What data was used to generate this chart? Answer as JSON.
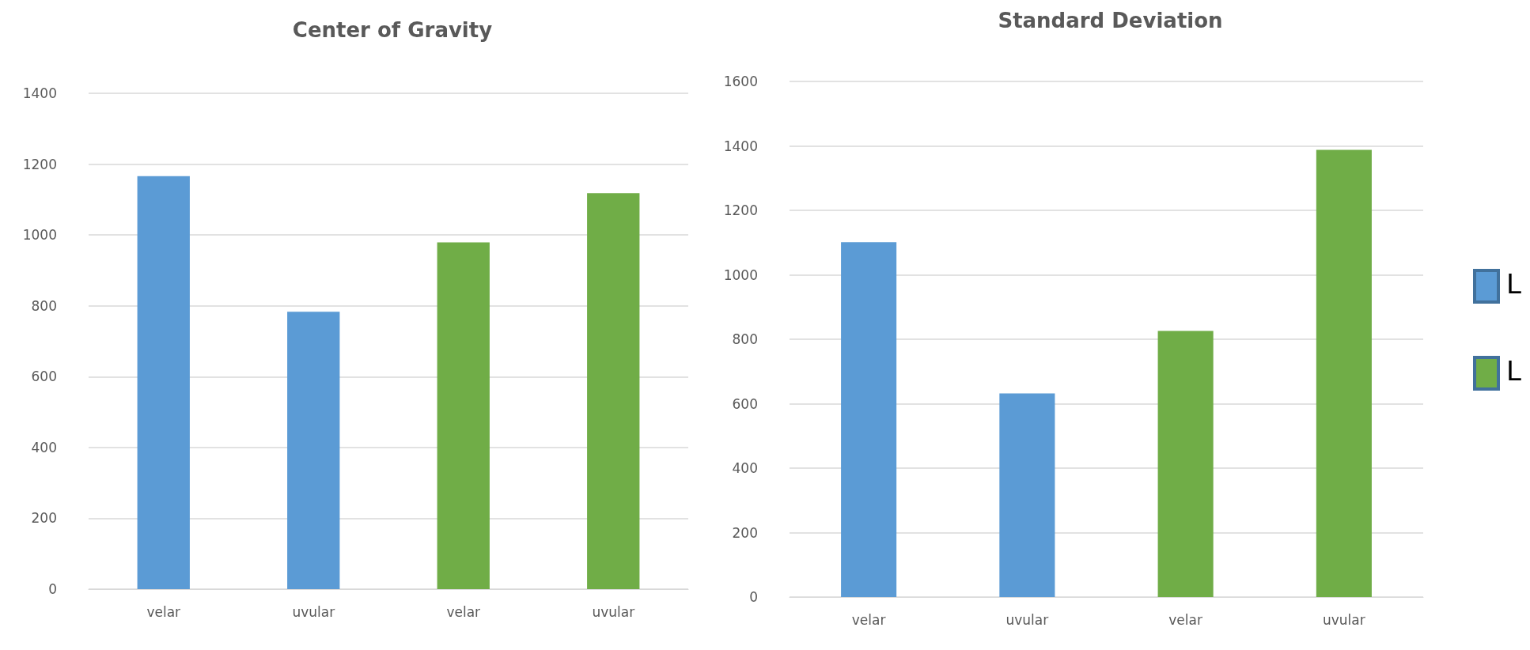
{
  "chart_data": [
    {
      "type": "bar",
      "title": "Center of Gravity",
      "categories": [
        "velar",
        "uvular",
        "velar",
        "uvular"
      ],
      "series": [
        {
          "color": "#5b9bd5",
          "values": [
            1166,
            783,
            null,
            null
          ]
        },
        {
          "color": "#70ad47",
          "values": [
            null,
            null,
            979,
            1118
          ]
        }
      ],
      "ylim": [
        0,
        1400
      ],
      "yticks": [
        0,
        200,
        400,
        600,
        800,
        1000,
        1200,
        1400
      ],
      "grid": "y",
      "legend": false
    },
    {
      "type": "bar",
      "title": "Standard Deviation",
      "categories": [
        "velar",
        "uvular",
        "velar",
        "uvular"
      ],
      "series": [
        {
          "name": "L",
          "color": "#5b9bd5",
          "values": [
            1101,
            632,
            null,
            null
          ]
        },
        {
          "name": "L",
          "color": "#70ad47",
          "values": [
            null,
            null,
            826,
            1388
          ]
        }
      ],
      "ylim": [
        0,
        1600
      ],
      "yticks": [
        0,
        200,
        400,
        600,
        800,
        1000,
        1200,
        1400,
        1600
      ],
      "grid": "y",
      "legend": "right"
    }
  ]
}
